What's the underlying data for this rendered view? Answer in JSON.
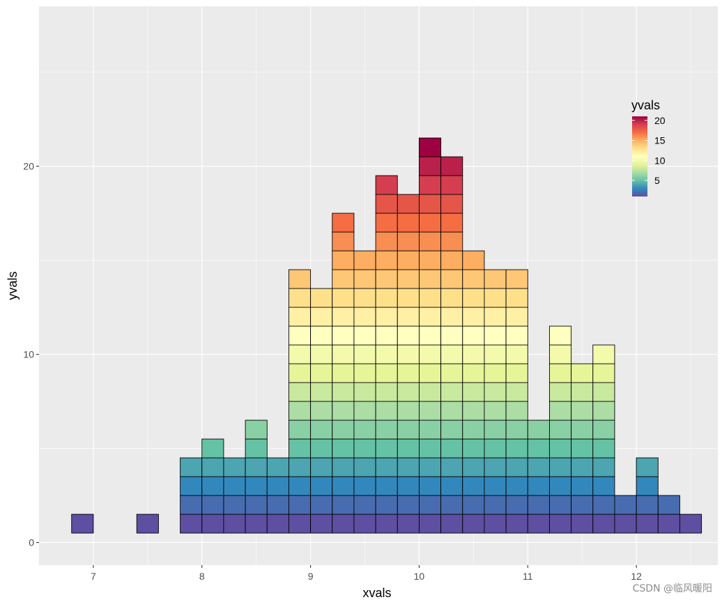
{
  "chart_data": {
    "type": "heatmap",
    "description_of_marks": "binned dot-histogram: each column stacks tiles y = 1..count, tile fill = yvals",
    "x_bin_centers": [
      6.9,
      7.5,
      7.9,
      8.1,
      8.3,
      8.5,
      8.7,
      8.9,
      9.1,
      9.3,
      9.5,
      9.7,
      9.9,
      10.1,
      10.3,
      10.5,
      10.7,
      10.9,
      11.1,
      11.3,
      11.5,
      11.7,
      11.9,
      12.1,
      12.3,
      12.5
    ],
    "counts": [
      1,
      1,
      4,
      5,
      4,
      6,
      4,
      14,
      13,
      17,
      15,
      19,
      18,
      21,
      20,
      15,
      14,
      14,
      6,
      11,
      9,
      10,
      2,
      4,
      2,
      1
    ],
    "bin_width": 0.2,
    "xlabel": "xvals",
    "ylabel": "yvals",
    "xlim": [
      6.5,
      12.75
    ],
    "ylim": [
      -1.2,
      28.5
    ],
    "x_ticks": [
      7,
      8,
      9,
      10,
      11,
      12
    ],
    "y_ticks": [
      0,
      10,
      20
    ],
    "grid": true,
    "legend": {
      "title": "yvals",
      "position": "top-right",
      "range": [
        1,
        21
      ],
      "ticks": [
        5,
        10,
        15,
        20
      ],
      "palette": "Spectral (reversed)"
    },
    "colors": {
      "panel_background": "#ebebeb",
      "grid_major": "#ffffff",
      "tile_outline": "#000000",
      "palette_stops": [
        "#5e4fa2",
        "#3288bd",
        "#66c2a5",
        "#abdda4",
        "#e6f598",
        "#ffffbf",
        "#fee08b",
        "#fdae61",
        "#f46d43",
        "#d53e4f",
        "#9e0142"
      ]
    }
  },
  "watermark": "CSDN @临风暖阳"
}
